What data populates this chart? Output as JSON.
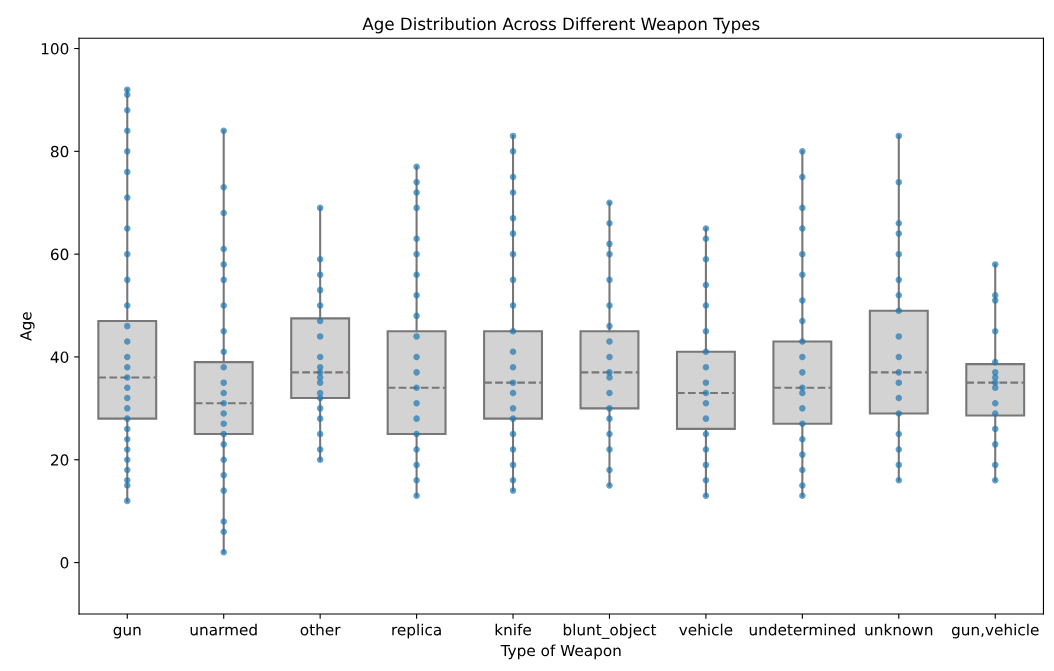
{
  "chart_data": {
    "type": "box",
    "title": "Age Distribution Across Different Weapon Types",
    "xlabel": "Type of Weapon",
    "ylabel": "Age",
    "categories": [
      "gun",
      "unarmed",
      "other",
      "replica",
      "knife",
      "blunt_object",
      "vehicle",
      "undetermined",
      "unknown",
      "gun,vehicle"
    ],
    "color": "#d3d3d3",
    "ylim": [
      -10,
      102
    ],
    "yticks": [
      0,
      20,
      40,
      60,
      80,
      100
    ],
    "grid": false,
    "boxes": [
      {
        "low": 12,
        "q1": 28,
        "median": 36,
        "q3": 47,
        "high": 92
      },
      {
        "low": 2,
        "q1": 25,
        "median": 31,
        "q3": 39,
        "high": 84
      },
      {
        "low": 20,
        "q1": 32,
        "median": 37,
        "q3": 47.5,
        "high": 69
      },
      {
        "low": 13,
        "q1": 25,
        "median": 34,
        "q3": 45,
        "high": 77
      },
      {
        "low": 14,
        "q1": 28,
        "median": 35,
        "q3": 45,
        "high": 83
      },
      {
        "low": 15,
        "q1": 30,
        "median": 37,
        "q3": 45,
        "high": 70
      },
      {
        "low": 13,
        "q1": 26,
        "median": 33,
        "q3": 41,
        "high": 65
      },
      {
        "low": 13,
        "q1": 27,
        "median": 34,
        "q3": 43,
        "high": 80
      },
      {
        "low": 16,
        "q1": 29,
        "median": 37,
        "q3": 49,
        "high": 83
      },
      {
        "low": 16,
        "q1": 28.6,
        "median": 35,
        "q3": 38.6,
        "high": 58
      }
    ],
    "series": [
      {
        "type": "scatter",
        "color": "#1f77b4",
        "x": [
          "gun",
          "gun",
          "gun",
          "gun",
          "gun",
          "gun",
          "gun",
          "gun",
          "gun",
          "gun",
          "gun",
          "gun",
          "gun",
          "gun",
          "gun",
          "gun",
          "gun",
          "gun",
          "gun",
          "gun",
          "gun",
          "gun",
          "gun",
          "gun",
          "gun",
          "gun",
          "gun",
          "gun",
          "unarmed",
          "unarmed",
          "unarmed",
          "unarmed",
          "unarmed",
          "unarmed",
          "unarmed",
          "unarmed",
          "unarmed",
          "unarmed",
          "unarmed",
          "unarmed",
          "unarmed",
          "unarmed",
          "unarmed",
          "unarmed",
          "unarmed",
          "unarmed",
          "unarmed",
          "unarmed",
          "unarmed",
          "unarmed",
          "unarmed",
          "other",
          "other",
          "other",
          "other",
          "other",
          "other",
          "other",
          "other",
          "other",
          "other",
          "other",
          "other",
          "other",
          "other",
          "other",
          "other",
          "other",
          "other",
          "other",
          "replica",
          "replica",
          "replica",
          "replica",
          "replica",
          "replica",
          "replica",
          "replica",
          "replica",
          "replica",
          "replica",
          "replica",
          "replica",
          "replica",
          "replica",
          "replica",
          "replica",
          "replica",
          "replica",
          "replica",
          "knife",
          "knife",
          "knife",
          "knife",
          "knife",
          "knife",
          "knife",
          "knife",
          "knife",
          "knife",
          "knife",
          "knife",
          "knife",
          "knife",
          "knife",
          "knife",
          "knife",
          "knife",
          "knife",
          "knife",
          "knife",
          "blunt_object",
          "blunt_object",
          "blunt_object",
          "blunt_object",
          "blunt_object",
          "blunt_object",
          "blunt_object",
          "blunt_object",
          "blunt_object",
          "blunt_object",
          "blunt_object",
          "blunt_object",
          "blunt_object",
          "blunt_object",
          "blunt_object",
          "blunt_object",
          "blunt_object",
          "blunt_object",
          "vehicle",
          "vehicle",
          "vehicle",
          "vehicle",
          "vehicle",
          "vehicle",
          "vehicle",
          "vehicle",
          "vehicle",
          "vehicle",
          "vehicle",
          "vehicle",
          "vehicle",
          "vehicle",
          "vehicle",
          "vehicle",
          "vehicle",
          "undetermined",
          "undetermined",
          "undetermined",
          "undetermined",
          "undetermined",
          "undetermined",
          "undetermined",
          "undetermined",
          "undetermined",
          "undetermined",
          "undetermined",
          "undetermined",
          "undetermined",
          "undetermined",
          "undetermined",
          "undetermined",
          "undetermined",
          "undetermined",
          "undetermined",
          "undetermined",
          "unknown",
          "unknown",
          "unknown",
          "unknown",
          "unknown",
          "unknown",
          "unknown",
          "unknown",
          "unknown",
          "unknown",
          "unknown",
          "unknown",
          "unknown",
          "unknown",
          "unknown",
          "unknown",
          "unknown",
          "unknown",
          "gun,vehicle",
          "gun,vehicle",
          "gun,vehicle",
          "gun,vehicle",
          "gun,vehicle",
          "gun,vehicle",
          "gun,vehicle",
          "gun,vehicle",
          "gun,vehicle",
          "gun,vehicle",
          "gun,vehicle",
          "gun,vehicle",
          "gun,vehicle",
          "gun,vehicle",
          "gun,vehicle"
        ],
        "values": [
          12,
          15,
          16,
          18,
          20,
          22,
          24,
          26,
          28,
          30,
          32,
          34,
          36,
          38,
          40,
          43,
          46,
          50,
          55,
          60,
          65,
          71,
          76,
          80,
          84,
          88,
          91,
          92,
          2,
          6,
          8,
          14,
          17,
          20,
          23,
          25,
          27,
          29,
          31,
          33,
          35,
          38,
          41,
          45,
          50,
          55,
          58,
          61,
          68,
          73,
          84,
          20,
          22,
          25,
          28,
          30,
          32,
          33,
          35,
          36,
          37,
          38,
          40,
          44,
          47,
          50,
          53,
          56,
          59,
          69,
          13,
          16,
          19,
          22,
          25,
          28,
          31,
          34,
          37,
          40,
          44,
          48,
          52,
          56,
          60,
          63,
          69,
          72,
          74,
          77,
          14,
          16,
          19,
          22,
          25,
          28,
          30,
          33,
          35,
          38,
          41,
          45,
          50,
          55,
          60,
          64,
          67,
          72,
          75,
          80,
          83,
          15,
          18,
          22,
          25,
          28,
          30,
          33,
          36,
          37,
          40,
          43,
          46,
          50,
          55,
          60,
          62,
          66,
          70,
          13,
          16,
          19,
          22,
          25,
          28,
          31,
          33,
          35,
          38,
          41,
          45,
          50,
          54,
          59,
          63,
          65,
          13,
          15,
          18,
          21,
          24,
          27,
          30,
          33,
          34,
          37,
          40,
          43,
          47,
          51,
          56,
          60,
          65,
          69,
          75,
          80,
          16,
          19,
          22,
          25,
          29,
          32,
          35,
          37,
          40,
          44,
          49,
          52,
          55,
          60,
          64,
          66,
          74,
          83,
          16,
          19,
          23,
          26,
          29,
          31,
          34,
          35,
          36,
          37,
          39,
          45,
          51,
          52,
          58
        ]
      }
    ]
  }
}
